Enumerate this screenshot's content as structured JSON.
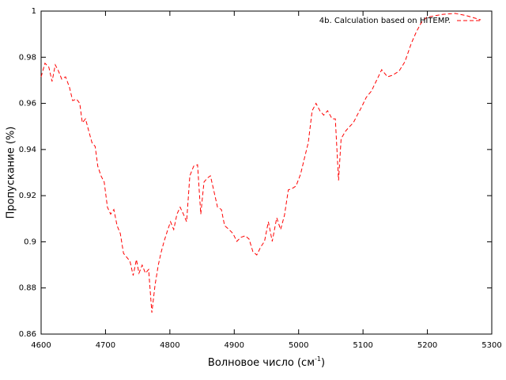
{
  "chart_data": {
    "type": "line",
    "xlabel": {
      "text": "Волновое число (см",
      "sup": "-1",
      "end": ")"
    },
    "ylabel": "Пропускание (%)",
    "xlim": [
      4600,
      5300
    ],
    "xticks": [
      4600,
      4700,
      4800,
      4900,
      5000,
      5100,
      5200,
      5300
    ],
    "ylim": [
      0.86,
      1
    ],
    "yticks": [
      0.86,
      0.88,
      0.9,
      0.92,
      0.94,
      0.96,
      0.98,
      1
    ],
    "legend": "top-right",
    "dashed": true,
    "series": [
      {
        "name": "4b. Calculation based on HITEMP.",
        "color": "#ff0000",
        "x": [
          4600,
          4606,
          4612,
          4617,
          4622,
          4627,
          4632,
          4638,
          4644,
          4649,
          4655,
          4660,
          4664,
          4669,
          4674,
          4679,
          4684,
          4688,
          4693,
          4698,
          4703,
          4708,
          4713,
          4718,
          4723,
          4728,
          4733,
          4738,
          4743,
          4748,
          4752,
          4757,
          4762,
          4767,
          4772,
          4777,
          4782,
          4786,
          4791,
          4796,
          4801,
          4806,
          4811,
          4816,
          4821,
          4826,
          4831,
          4837,
          4843,
          4848,
          4853,
          4858,
          4863,
          4868,
          4874,
          4880,
          4885,
          4892,
          4898,
          4904,
          4910,
          4917,
          4923,
          4929,
          4935,
          4941,
          4947,
          4953,
          4959,
          4966,
          4972,
          4978,
          4984,
          4990,
          4996,
          5003,
          5009,
          5015,
          5021,
          5027,
          5033,
          5039,
          5045,
          5052,
          5057,
          5062,
          5066,
          5073,
          5079,
          5085,
          5091,
          5098,
          5105,
          5113,
          5122,
          5129,
          5138,
          5146,
          5156,
          5165,
          5175,
          5183,
          5191,
          5199,
          5212,
          5224,
          5243,
          5261,
          5283
        ],
        "values": [
          0.9715,
          0.9774,
          0.9757,
          0.9695,
          0.9767,
          0.974,
          0.9705,
          0.9715,
          0.967,
          0.9612,
          0.9619,
          0.96,
          0.9516,
          0.9533,
          0.948,
          0.943,
          0.9413,
          0.9328,
          0.9286,
          0.9259,
          0.915,
          0.912,
          0.914,
          0.907,
          0.9036,
          0.895,
          0.8933,
          0.8916,
          0.8854,
          0.8923,
          0.8864,
          0.8899,
          0.8864,
          0.888,
          0.8693,
          0.8813,
          0.8899,
          0.895,
          0.9002,
          0.9046,
          0.9087,
          0.9053,
          0.912,
          0.915,
          0.912,
          0.9087,
          0.9286,
          0.9328,
          0.9334,
          0.912,
          0.9259,
          0.9276,
          0.9286,
          0.9225,
          0.915,
          0.914,
          0.907,
          0.9053,
          0.9036,
          0.9002,
          0.9019,
          0.9026,
          0.9012,
          0.8957,
          0.8943,
          0.8977,
          0.9002,
          0.9087,
          0.9002,
          0.9104,
          0.9053,
          0.9115,
          0.9225,
          0.9231,
          0.9242,
          0.9293,
          0.9362,
          0.943,
          0.9568,
          0.96,
          0.9568,
          0.9549,
          0.9568,
          0.9533,
          0.9533,
          0.9266,
          0.9447,
          0.948,
          0.9499,
          0.9516,
          0.9549,
          0.9585,
          0.9626,
          0.9653,
          0.9705,
          0.9746,
          0.9715,
          0.9722,
          0.974,
          0.978,
          0.986,
          0.9911,
          0.9952,
          0.9973,
          0.998,
          0.9986,
          0.999,
          0.998,
          0.9962
        ]
      }
    ]
  }
}
